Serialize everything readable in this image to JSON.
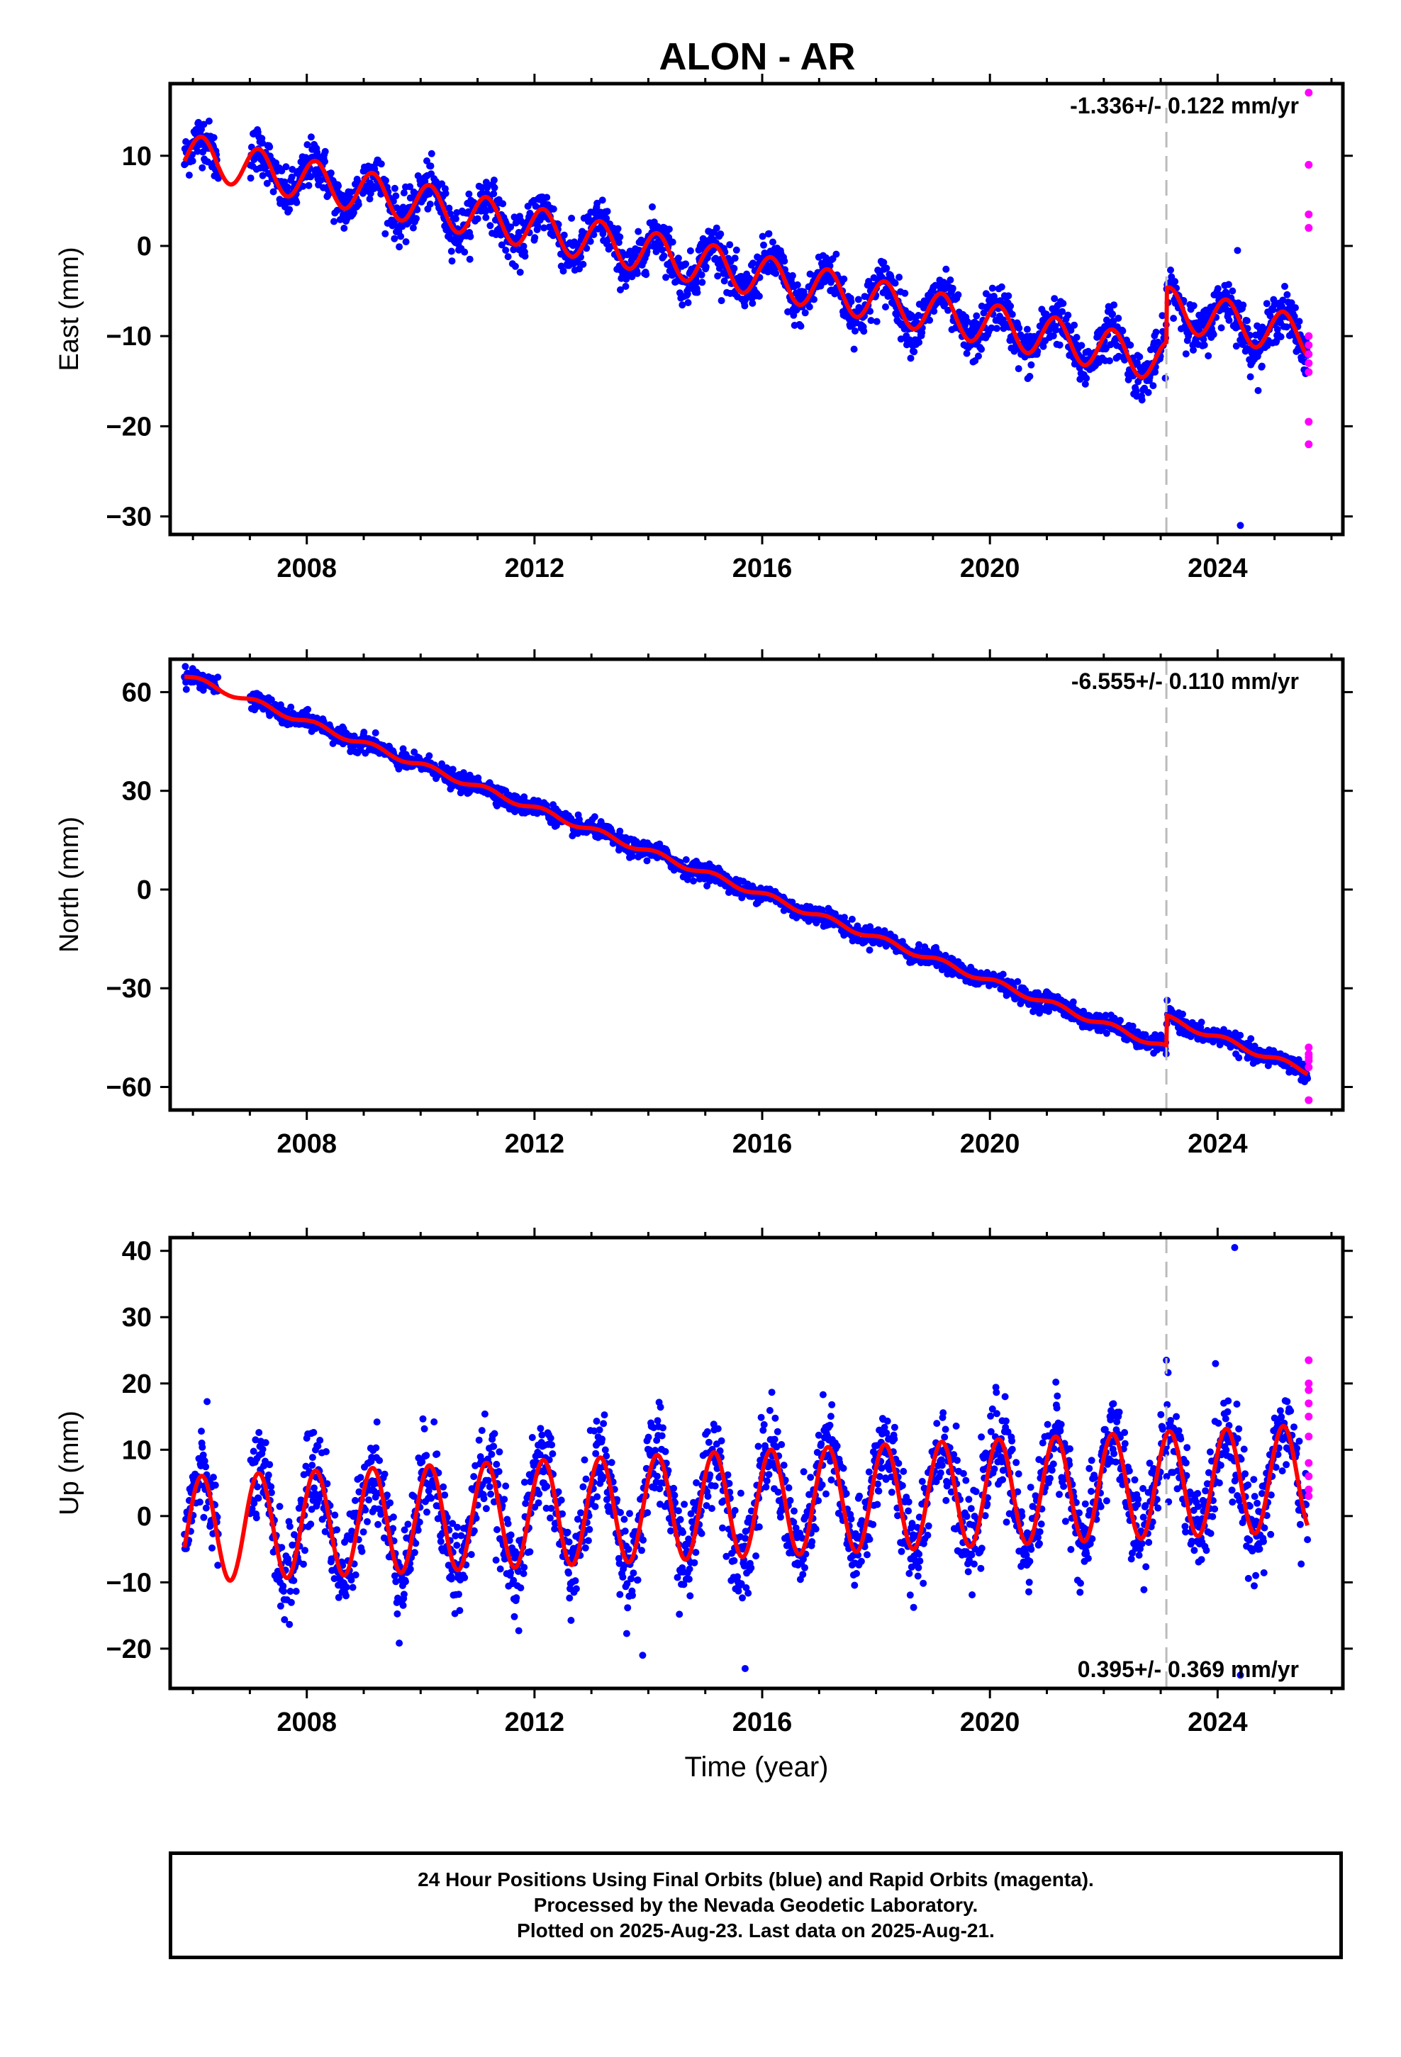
{
  "title": "ALON - AR",
  "colors": {
    "final": "#0000ff",
    "rapid": "#ff00ff",
    "model": "#ff0000",
    "step": "#bbbbbb"
  },
  "chart_data": [
    {
      "type": "scatter",
      "name": "east",
      "ylabel": "East (mm)",
      "xlabel": "",
      "xlim": [
        2005.6,
        2026.2
      ],
      "ylim": [
        -32,
        18
      ],
      "yticks": [
        -30,
        -20,
        -10,
        0,
        10
      ],
      "xticks": [
        2008,
        2012,
        2016,
        2020,
        2024
      ],
      "rate_label": "-1.336+/- 0.122 mm/yr",
      "rate_position": "top-right",
      "rate": -1.336,
      "intercept": 10.0,
      "seasonal_amp": 2.3,
      "noise": 1.3,
      "step_year": 2023.1,
      "step": 6.0,
      "outliers": [
        {
          "x": 2024.4,
          "y": -31.0
        },
        {
          "x": 2024.35,
          "y": -0.5
        }
      ],
      "rapid": [
        17,
        9,
        3.5,
        2,
        -10,
        -11,
        -12,
        -13,
        -14,
        -19.5,
        -22
      ]
    },
    {
      "type": "scatter",
      "name": "north",
      "ylabel": "North (mm)",
      "xlabel": "",
      "xlim": [
        2005.6,
        2026.2
      ],
      "ylim": [
        -67,
        70
      ],
      "yticks": [
        -60,
        -30,
        0,
        30,
        60
      ],
      "xticks": [
        2008,
        2012,
        2016,
        2020,
        2024
      ],
      "rate_label": "-6.555+/- 0.110 mm/yr",
      "rate_position": "top-right",
      "rate": -6.555,
      "intercept": 64.0,
      "seasonal_amp": 0.9,
      "noise": 1.3,
      "step_year": 2023.1,
      "step": 9.0,
      "outliers": [],
      "rapid": [
        -48,
        -50,
        -51,
        -52,
        -54,
        -64
      ]
    },
    {
      "type": "scatter",
      "name": "up",
      "ylabel": "Up (mm)",
      "xlabel": "Time (year)",
      "xlim": [
        2005.6,
        2026.2
      ],
      "ylim": [
        -26,
        42
      ],
      "yticks": [
        -20,
        -10,
        0,
        10,
        20,
        30,
        40
      ],
      "xticks": [
        2008,
        2012,
        2016,
        2020,
        2024
      ],
      "rate_label": "0.395+/- 0.369 mm/yr",
      "rate_position": "bottom-right",
      "rate": 0.395,
      "intercept": -2.0,
      "seasonal_amp": 8.0,
      "noise": 3.5,
      "step_year": 2023.1,
      "step": 0,
      "outliers": [
        {
          "x": 2024.3,
          "y": 40.5
        },
        {
          "x": 2023.1,
          "y": 23.5
        },
        {
          "x": 2013.9,
          "y": -21
        },
        {
          "x": 2015.7,
          "y": -23
        },
        {
          "x": 2024.4,
          "y": -24
        }
      ],
      "rapid": [
        23.5,
        20,
        19,
        17,
        15,
        12,
        8,
        6,
        4,
        3
      ]
    }
  ],
  "footer": {
    "line1": "24 Hour Positions Using Final Orbits (blue) and Rapid Orbits (magenta).",
    "line2": "Processed by the Nevada Geodetic Laboratory.",
    "line3": "Plotted on 2025-Aug-23. Last data on 2025-Aug-21."
  }
}
